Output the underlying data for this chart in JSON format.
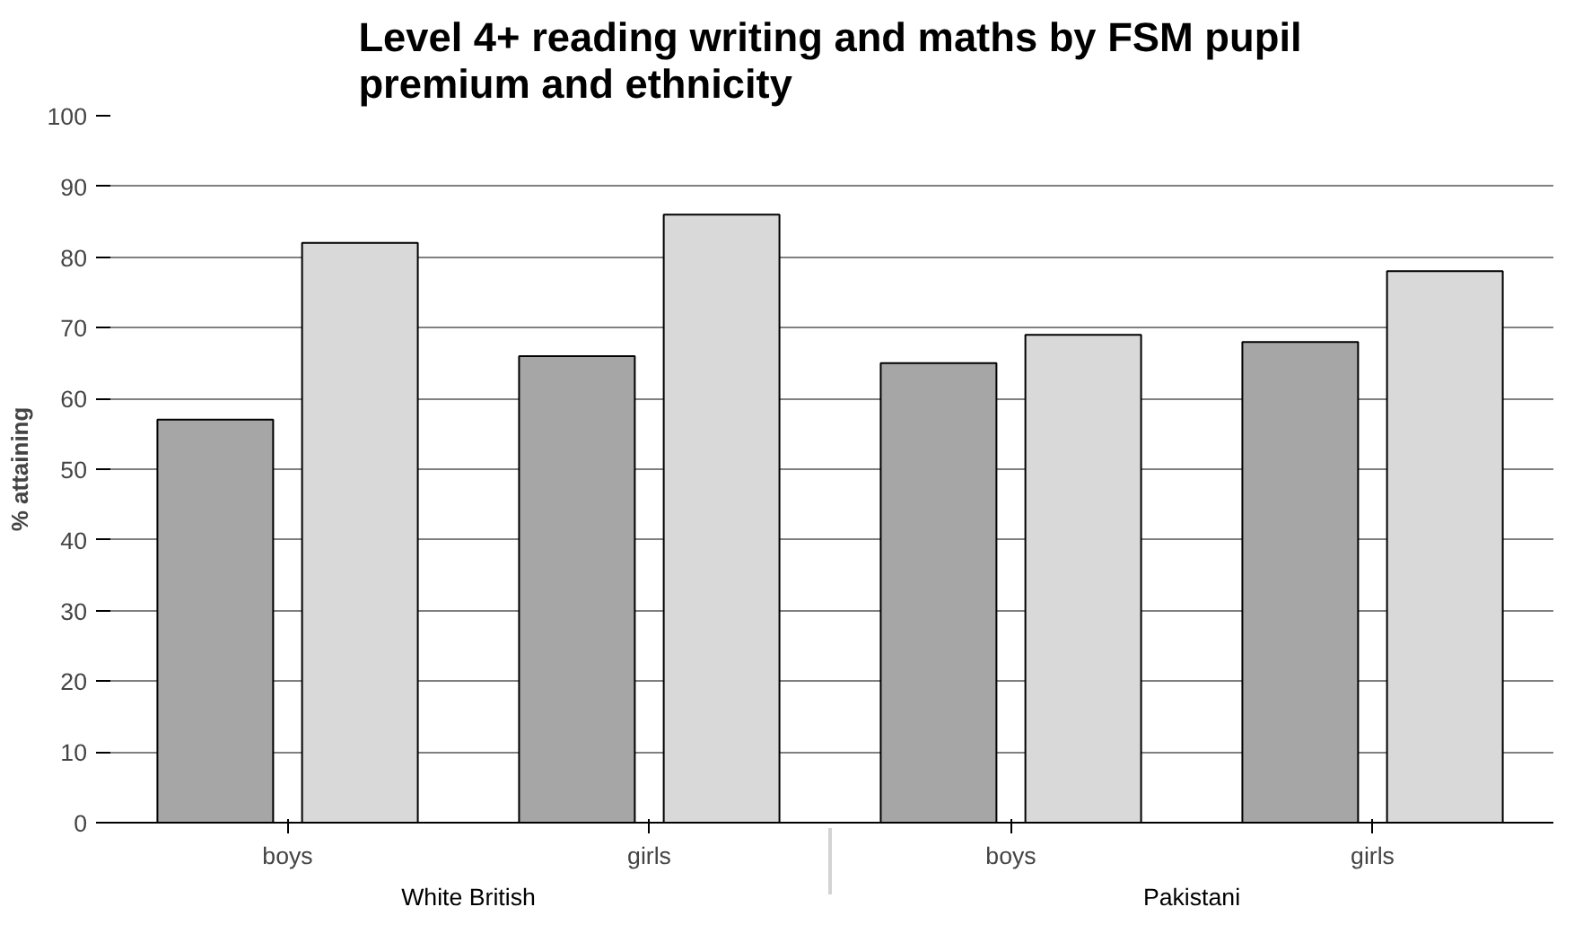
{
  "chart_data": {
    "type": "bar",
    "title": "Level 4+ reading writing and maths by FSM pupil premium and ethnicity",
    "ylabel": "% attaining",
    "categories": [
      "boys",
      "girls",
      "boys",
      "girls"
    ],
    "annotations": [
      "White British",
      "Pakistani"
    ],
    "series": [
      {
        "color": "#a6a6a6",
        "values": [
          57,
          66,
          65,
          68
        ]
      },
      {
        "color": "#d9d9d9",
        "values": [
          82,
          86,
          69,
          78
        ]
      }
    ],
    "ylim": [
      0,
      100
    ],
    "yticks": [
      0,
      10,
      20,
      30,
      40,
      50,
      60,
      70,
      80,
      90,
      100
    ],
    "grid": "y"
  }
}
